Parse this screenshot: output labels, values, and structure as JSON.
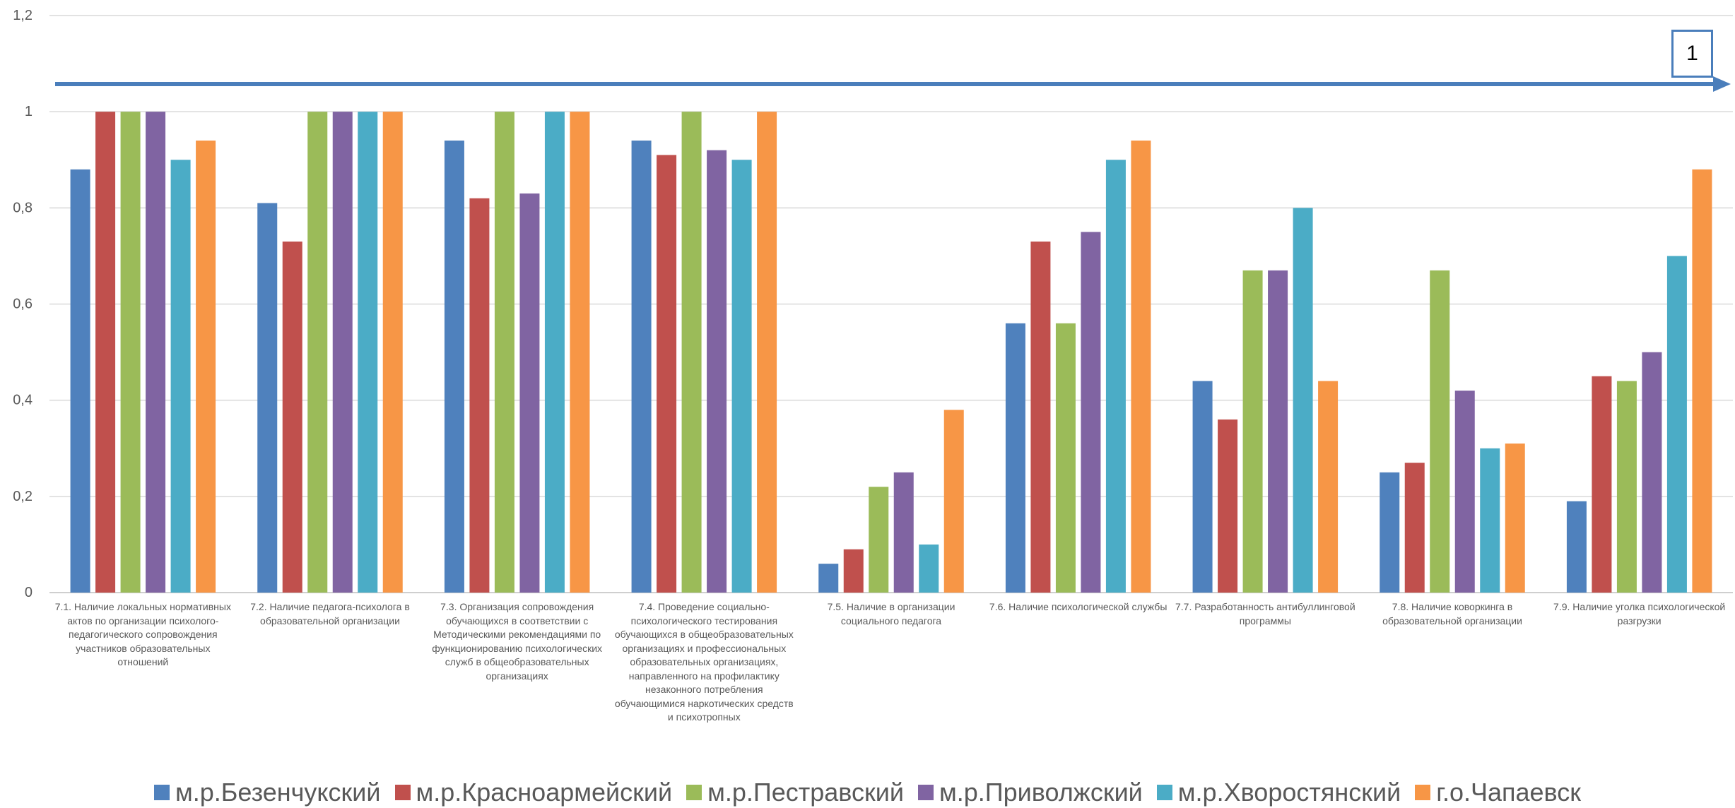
{
  "chart_data": {
    "type": "bar",
    "ylim": [
      0,
      1.2
    ],
    "yticks": [
      "0",
      "0,2",
      "0,4",
      "0,6",
      "0,8",
      "1",
      "1,2"
    ],
    "grid": true,
    "legend_position": "bottom",
    "categories": [
      "7.1. Наличие локальных нормативных\nактов по организации психолого-\nпедагогического сопровождения\nучастников образовательных\nотношений",
      "7.2. Наличие педагога-психолога в\nобразовательной организации",
      "7.3. Организация сопровождения\nобучающихся в соответствии с\nМетодическими рекомендациями по\nфункционированию психологических\nслужб в общеобразовательных\nорганизациях",
      "7.4. Проведение социально-\nпсихологического тестирования\nобучающихся в общеобразовательных\nорганизациях и профессиональных\nобразовательных организациях,\nнаправленного на профилактику\nнезаконного потребления\nобучающимися наркотических средств\nи психотропных",
      "7.5. Наличие в организации\nсоциального педагога",
      "7.6. Наличие психологической службы",
      "7.7. Разработанность антибуллинговой\nпрограммы",
      "7.8. Наличие коворкинга в\nобразовательной организации",
      "7.9. Наличие уголка психологической\nразгрузки"
    ],
    "series": [
      {
        "name": "м.р.Безенчукский",
        "color": "#4F81BD",
        "values": [
          0.88,
          0.81,
          0.94,
          0.94,
          0.06,
          0.56,
          0.44,
          0.25,
          0.19
        ]
      },
      {
        "name": "м.р.Красноармейский",
        "color": "#C0504D",
        "values": [
          1,
          0.73,
          0.82,
          0.91,
          0.09,
          0.73,
          0.36,
          0.27,
          0.45
        ]
      },
      {
        "name": "м.р.Пестравский",
        "color": "#9BBB59",
        "values": [
          1,
          1,
          1,
          1,
          0.22,
          0.56,
          0.67,
          0.67,
          0.44
        ]
      },
      {
        "name": "м.р.Приволжский",
        "color": "#8064A2",
        "values": [
          1,
          1,
          0.83,
          0.92,
          0.25,
          0.75,
          0.67,
          0.42,
          0.5
        ]
      },
      {
        "name": "м.р.Хворостянский",
        "color": "#4BACC6",
        "values": [
          0.9,
          1,
          1,
          0.9,
          0.1,
          0.9,
          0.8,
          0.3,
          0.7
        ]
      },
      {
        "name": "г.о.Чапаевск",
        "color": "#F79646",
        "values": [
          0.94,
          1,
          1,
          1,
          0.38,
          0.94,
          0.44,
          0.31,
          0.88
        ]
      }
    ]
  },
  "annotation": {
    "box_label": "1",
    "color": "#4A7EBB"
  }
}
